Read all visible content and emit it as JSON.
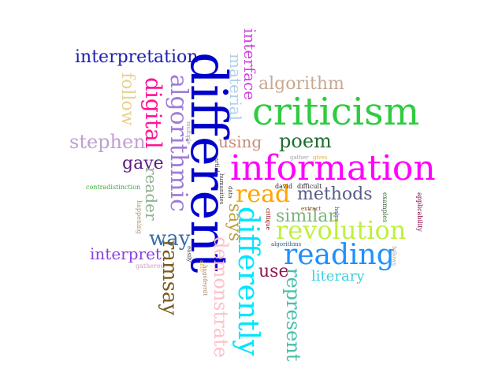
{
  "words": [
    {
      "id": "different",
      "text": "different",
      "color": "#0000cc"
    },
    {
      "id": "criticism",
      "text": "criticism",
      "color": "#2ecc40"
    },
    {
      "id": "information",
      "text": "information",
      "color": "#ff00ff"
    },
    {
      "id": "revolution",
      "text": "revolution",
      "color": "#bff03f"
    },
    {
      "id": "reading",
      "text": "reading",
      "color": "#1e90ff"
    },
    {
      "id": "differently",
      "text": "differently",
      "color": "#00e5ff"
    },
    {
      "id": "algorithmic",
      "text": "algorithmic",
      "color": "#a07cd8"
    },
    {
      "id": "read",
      "text": "read",
      "color": "#ffa500"
    },
    {
      "id": "interpretation",
      "text": "interpretation",
      "color": "#2020b0"
    },
    {
      "id": "digital",
      "text": "digital",
      "color": "#ff1493"
    },
    {
      "id": "algorithm",
      "text": "algorithm",
      "color": "#c8a890"
    },
    {
      "id": "poem",
      "text": "poem",
      "color": "#1f6b2f"
    },
    {
      "id": "methods",
      "text": "methods",
      "color": "#5a5a8a"
    },
    {
      "id": "similar",
      "text": "similar",
      "color": "#7bb67b"
    },
    {
      "id": "stephen",
      "text": "stephen",
      "color": "#c0a0d0"
    },
    {
      "id": "using",
      "text": "using",
      "color": "#c88a7a"
    },
    {
      "id": "gave",
      "text": "gave",
      "color": "#5a1d80"
    },
    {
      "id": "way",
      "text": "way",
      "color": "#3a6ea5"
    },
    {
      "id": "interpret",
      "text": "interpret",
      "color": "#8a40e0"
    },
    {
      "id": "ramsay",
      "text": "ramsay",
      "color": "#7a5a20"
    },
    {
      "id": "represent",
      "text": "represent",
      "color": "#ffc0cb"
    },
    {
      "id": "demonstrate",
      "text": "demonstrate",
      "color": "#48c0a8"
    },
    {
      "id": "use",
      "text": "use",
      "color": "#8b1a50"
    },
    {
      "id": "literary",
      "text": "literary",
      "color": "#3ad0e0"
    },
    {
      "id": "says",
      "text": "says",
      "color": "#c0a040"
    },
    {
      "id": "follow",
      "text": "follow",
      "color": "#e8d090"
    },
    {
      "id": "material",
      "text": "material",
      "color": "#b0d0e8"
    },
    {
      "id": "interface",
      "text": "interface",
      "color": "#d040e0"
    },
    {
      "id": "reader",
      "text": "reader",
      "color": "#90b090"
    },
    {
      "id": "contradistinction",
      "text": "contradistinction",
      "color": "#3caa3c"
    },
    {
      "id": "happening",
      "text": "happening",
      "color": "#b09070"
    },
    {
      "id": "gathered",
      "text": "gathered",
      "color": "#d0a0c0"
    },
    {
      "id": "multiple",
      "text": "multiple",
      "color": "#a0a0a0"
    },
    {
      "id": "easily",
      "text": "easily",
      "color": "#404040"
    },
    {
      "id": "able",
      "text": "able",
      "color": "#e0c060"
    },
    {
      "id": "hugofeyrdt",
      "text": "hugofeyrdt",
      "color": "#a08060"
    },
    {
      "id": "article",
      "text": "article",
      "color": "#3a3a3a"
    },
    {
      "id": "humanities",
      "text": "humanities",
      "color": "#3a3a3a"
    },
    {
      "id": "data",
      "text": "data",
      "color": "#3a3a3a"
    },
    {
      "id": "gather",
      "text": "gather",
      "color": "#a0a0a0"
    },
    {
      "id": "gives",
      "text": "gives",
      "color": "#e0b040"
    },
    {
      "id": "david",
      "text": "david",
      "color": "#2a2a2a"
    },
    {
      "id": "difficult",
      "text": "difficult",
      "color": "#2a2a2a"
    },
    {
      "id": "extract",
      "text": "extract",
      "color": "#8a4a2a"
    },
    {
      "id": "critique",
      "text": "critique",
      "color": "#800000"
    },
    {
      "id": "algorithms",
      "text": "algorithms",
      "color": "#2a5a8a"
    },
    {
      "id": "helps",
      "text": "helps",
      "color": "#4a4a8a"
    },
    {
      "id": "examples",
      "text": "examples",
      "color": "#3a6a3a"
    },
    {
      "id": "applicability",
      "text": "applicability",
      "color": "#800040"
    },
    {
      "id": "follows",
      "text": "follows",
      "color": "#b0a0a0"
    }
  ]
}
